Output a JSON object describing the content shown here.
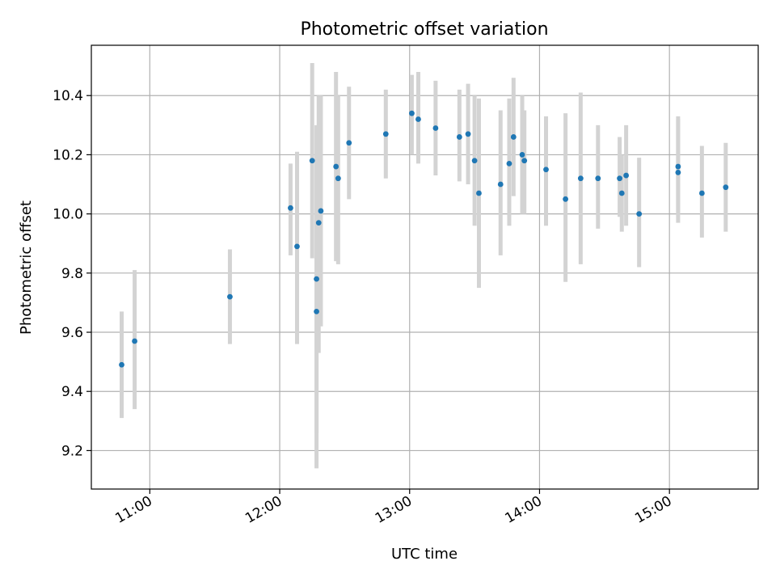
{
  "chart_data": {
    "type": "scatter",
    "title": "Photometric offset variation",
    "xlabel": "UTC time",
    "ylabel": "Photometric offset",
    "x_unit": "hours UTC",
    "xlim": [
      "10:33",
      "15:41"
    ],
    "ylim": [
      9.07,
      10.57
    ],
    "x_ticks": [
      {
        "value": "11:00",
        "label": "11:00"
      },
      {
        "value": "12:00",
        "label": "12:00"
      },
      {
        "value": "13:00",
        "label": "13:00"
      },
      {
        "value": "14:00",
        "label": "14:00"
      },
      {
        "value": "15:00",
        "label": "15:00"
      }
    ],
    "y_ticks": [
      9.2,
      9.4,
      9.6,
      9.8,
      10.0,
      10.2,
      10.4
    ],
    "y_tick_labels": [
      "9.2",
      "9.4",
      "9.6",
      "9.8",
      "10.0",
      "10.2",
      "10.4"
    ],
    "grid": true,
    "marker_color": "#1f77b4",
    "errorbar_color": "#d3d3d3",
    "points": [
      {
        "x": "10:47",
        "y": 9.49,
        "ylow": 9.31,
        "yhigh": 9.67
      },
      {
        "x": "10:53",
        "y": 9.57,
        "ylow": 9.34,
        "yhigh": 9.81
      },
      {
        "x": "11:37",
        "y": 9.72,
        "ylow": 9.56,
        "yhigh": 9.88
      },
      {
        "x": "12:05",
        "y": 10.02,
        "ylow": 9.86,
        "yhigh": 10.17
      },
      {
        "x": "12:08",
        "y": 9.89,
        "ylow": 9.56,
        "yhigh": 10.21
      },
      {
        "x": "12:15",
        "y": 10.18,
        "ylow": 9.85,
        "yhigh": 10.51
      },
      {
        "x": "12:17",
        "y": 9.78,
        "ylow": 9.26,
        "yhigh": 10.3
      },
      {
        "x": "12:17",
        "y": 9.67,
        "ylow": 9.14,
        "yhigh": 10.2
      },
      {
        "x": "12:18",
        "y": 9.97,
        "ylow": 9.53,
        "yhigh": 10.4
      },
      {
        "x": "12:19",
        "y": 10.01,
        "ylow": 9.62,
        "yhigh": 10.4
      },
      {
        "x": "12:26",
        "y": 10.16,
        "ylow": 9.84,
        "yhigh": 10.48
      },
      {
        "x": "12:27",
        "y": 10.12,
        "ylow": 9.83,
        "yhigh": 10.4
      },
      {
        "x": "12:32",
        "y": 10.24,
        "ylow": 10.05,
        "yhigh": 10.43
      },
      {
        "x": "12:49",
        "y": 10.27,
        "ylow": 10.12,
        "yhigh": 10.42
      },
      {
        "x": "13:01",
        "y": 10.34,
        "ylow": 10.2,
        "yhigh": 10.47
      },
      {
        "x": "13:04",
        "y": 10.32,
        "ylow": 10.17,
        "yhigh": 10.48
      },
      {
        "x": "13:12",
        "y": 10.29,
        "ylow": 10.13,
        "yhigh": 10.45
      },
      {
        "x": "13:23",
        "y": 10.26,
        "ylow": 10.11,
        "yhigh": 10.42
      },
      {
        "x": "13:27",
        "y": 10.27,
        "ylow": 10.1,
        "yhigh": 10.44
      },
      {
        "x": "13:30",
        "y": 10.18,
        "ylow": 9.96,
        "yhigh": 10.4
      },
      {
        "x": "13:32",
        "y": 10.07,
        "ylow": 9.75,
        "yhigh": 10.39
      },
      {
        "x": "13:42",
        "y": 10.1,
        "ylow": 9.86,
        "yhigh": 10.35
      },
      {
        "x": "13:46",
        "y": 10.17,
        "ylow": 9.96,
        "yhigh": 10.39
      },
      {
        "x": "13:48",
        "y": 10.26,
        "ylow": 10.06,
        "yhigh": 10.46
      },
      {
        "x": "13:52",
        "y": 10.2,
        "ylow": 10.0,
        "yhigh": 10.4
      },
      {
        "x": "13:53",
        "y": 10.18,
        "ylow": 10.0,
        "yhigh": 10.35
      },
      {
        "x": "14:03",
        "y": 10.15,
        "ylow": 9.96,
        "yhigh": 10.33
      },
      {
        "x": "14:12",
        "y": 10.05,
        "ylow": 9.77,
        "yhigh": 10.34
      },
      {
        "x": "14:19",
        "y": 10.12,
        "ylow": 9.83,
        "yhigh": 10.41
      },
      {
        "x": "14:27",
        "y": 10.12,
        "ylow": 9.95,
        "yhigh": 10.3
      },
      {
        "x": "14:37",
        "y": 10.12,
        "ylow": 9.99,
        "yhigh": 10.26
      },
      {
        "x": "14:38",
        "y": 10.07,
        "ylow": 9.94,
        "yhigh": 10.2
      },
      {
        "x": "14:40",
        "y": 10.13,
        "ylow": 9.96,
        "yhigh": 10.3
      },
      {
        "x": "14:46",
        "y": 10.0,
        "ylow": 9.82,
        "yhigh": 10.19
      },
      {
        "x": "15:04",
        "y": 10.14,
        "ylow": 9.97,
        "yhigh": 10.32
      },
      {
        "x": "15:04",
        "y": 10.16,
        "ylow": 10.0,
        "yhigh": 10.33
      },
      {
        "x": "15:15",
        "y": 10.07,
        "ylow": 9.92,
        "yhigh": 10.23
      },
      {
        "x": "15:26",
        "y": 10.09,
        "ylow": 9.94,
        "yhigh": 10.24
      }
    ]
  }
}
